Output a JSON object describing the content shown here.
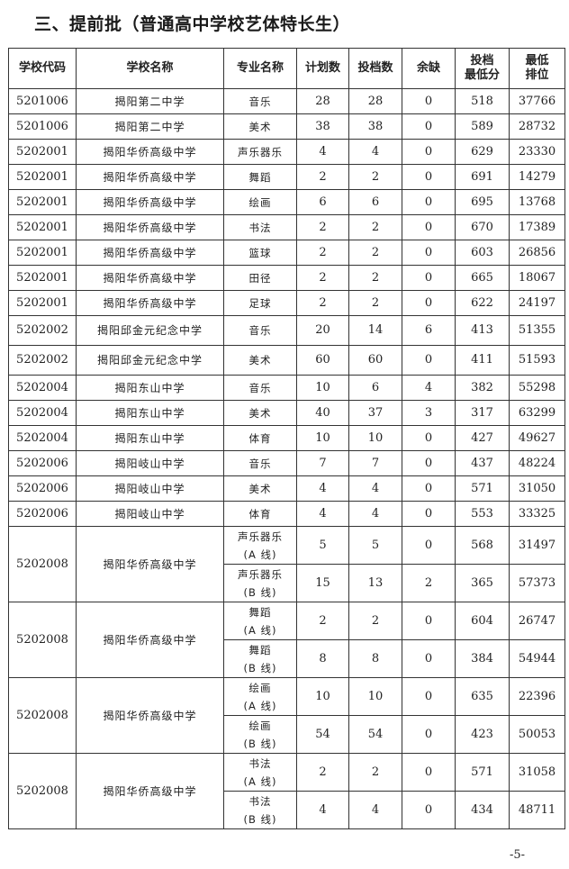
{
  "title": "三、提前批（普通高中学校艺体特长生）",
  "headers": [
    "学校代码",
    "学校名称",
    "专业名称",
    "计划数",
    "投档数",
    "余缺",
    "投档\n最低分",
    "最低\n排位"
  ],
  "rows": [
    {
      "code": "5201006",
      "school": "揭阳第二中学",
      "major": "音乐",
      "plan": "28",
      "filed": "28",
      "gap": "0",
      "min_score": "518",
      "min_rank": "37766"
    },
    {
      "code": "5201006",
      "school": "揭阳第二中学",
      "major": "美术",
      "plan": "38",
      "filed": "38",
      "gap": "0",
      "min_score": "589",
      "min_rank": "28732"
    },
    {
      "code": "5202001",
      "school": "揭阳华侨高级中学",
      "major": "声乐器乐",
      "plan": "4",
      "filed": "4",
      "gap": "0",
      "min_score": "629",
      "min_rank": "23330"
    },
    {
      "code": "5202001",
      "school": "揭阳华侨高级中学",
      "major": "舞蹈",
      "plan": "2",
      "filed": "2",
      "gap": "0",
      "min_score": "691",
      "min_rank": "14279"
    },
    {
      "code": "5202001",
      "school": "揭阳华侨高级中学",
      "major": "绘画",
      "plan": "6",
      "filed": "6",
      "gap": "0",
      "min_score": "695",
      "min_rank": "13768"
    },
    {
      "code": "5202001",
      "school": "揭阳华侨高级中学",
      "major": "书法",
      "plan": "2",
      "filed": "2",
      "gap": "0",
      "min_score": "670",
      "min_rank": "17389"
    },
    {
      "code": "5202001",
      "school": "揭阳华侨高级中学",
      "major": "篮球",
      "plan": "2",
      "filed": "2",
      "gap": "0",
      "min_score": "603",
      "min_rank": "26856"
    },
    {
      "code": "5202001",
      "school": "揭阳华侨高级中学",
      "major": "田径",
      "plan": "2",
      "filed": "2",
      "gap": "0",
      "min_score": "665",
      "min_rank": "18067"
    },
    {
      "code": "5202001",
      "school": "揭阳华侨高级中学",
      "major": "足球",
      "plan": "2",
      "filed": "2",
      "gap": "0",
      "min_score": "622",
      "min_rank": "24197"
    },
    {
      "code": "5202002",
      "school": "揭阳邱金元纪念中学",
      "major": "音乐",
      "plan": "20",
      "filed": "14",
      "gap": "6",
      "min_score": "413",
      "min_rank": "51355"
    },
    {
      "code": "5202002",
      "school": "揭阳邱金元纪念中学",
      "major": "美术",
      "plan": "60",
      "filed": "60",
      "gap": "0",
      "min_score": "411",
      "min_rank": "51593"
    },
    {
      "code": "5202004",
      "school": "揭阳东山中学",
      "major": "音乐",
      "plan": "10",
      "filed": "6",
      "gap": "4",
      "min_score": "382",
      "min_rank": "55298"
    },
    {
      "code": "5202004",
      "school": "揭阳东山中学",
      "major": "美术",
      "plan": "40",
      "filed": "37",
      "gap": "3",
      "min_score": "317",
      "min_rank": "63299"
    },
    {
      "code": "5202004",
      "school": "揭阳东山中学",
      "major": "体育",
      "plan": "10",
      "filed": "10",
      "gap": "0",
      "min_score": "427",
      "min_rank": "49627"
    },
    {
      "code": "5202006",
      "school": "揭阳岐山中学",
      "major": "音乐",
      "plan": "7",
      "filed": "7",
      "gap": "0",
      "min_score": "437",
      "min_rank": "48224"
    },
    {
      "code": "5202006",
      "school": "揭阳岐山中学",
      "major": "美术",
      "plan": "4",
      "filed": "4",
      "gap": "0",
      "min_score": "571",
      "min_rank": "31050"
    },
    {
      "code": "5202006",
      "school": "揭阳岐山中学",
      "major": "体育",
      "plan": "4",
      "filed": "4",
      "gap": "0",
      "min_score": "553",
      "min_rank": "33325"
    }
  ],
  "groups": [
    {
      "code": "5202008",
      "school": "揭阳华侨高级中学",
      "lines": [
        {
          "major": "声乐器乐\n(A 线)",
          "plan": "5",
          "filed": "5",
          "gap": "0",
          "min_score": "568",
          "min_rank": "31497"
        },
        {
          "major": "声乐器乐\n(B 线)",
          "plan": "15",
          "filed": "13",
          "gap": "2",
          "min_score": "365",
          "min_rank": "57373"
        }
      ]
    },
    {
      "code": "5202008",
      "school": "揭阳华侨高级中学",
      "lines": [
        {
          "major": "舞蹈\n(A 线)",
          "plan": "2",
          "filed": "2",
          "gap": "0",
          "min_score": "604",
          "min_rank": "26747"
        },
        {
          "major": "舞蹈\n(B 线)",
          "plan": "8",
          "filed": "8",
          "gap": "0",
          "min_score": "384",
          "min_rank": "54944"
        }
      ]
    },
    {
      "code": "5202008",
      "school": "揭阳华侨高级中学",
      "lines": [
        {
          "major": "绘画\n(A 线)",
          "plan": "10",
          "filed": "10",
          "gap": "0",
          "min_score": "635",
          "min_rank": "22396"
        },
        {
          "major": "绘画\n(B 线)",
          "plan": "54",
          "filed": "54",
          "gap": "0",
          "min_score": "423",
          "min_rank": "50053"
        }
      ]
    },
    {
      "code": "5202008",
      "school": "揭阳华侨高级中学",
      "lines": [
        {
          "major": "书法\n(A 线)",
          "plan": "2",
          "filed": "2",
          "gap": "0",
          "min_score": "571",
          "min_rank": "31058"
        },
        {
          "major": "书法\n(B 线)",
          "plan": "4",
          "filed": "4",
          "gap": "0",
          "min_score": "434",
          "min_rank": "48711"
        }
      ]
    }
  ],
  "page_number": "-5-"
}
